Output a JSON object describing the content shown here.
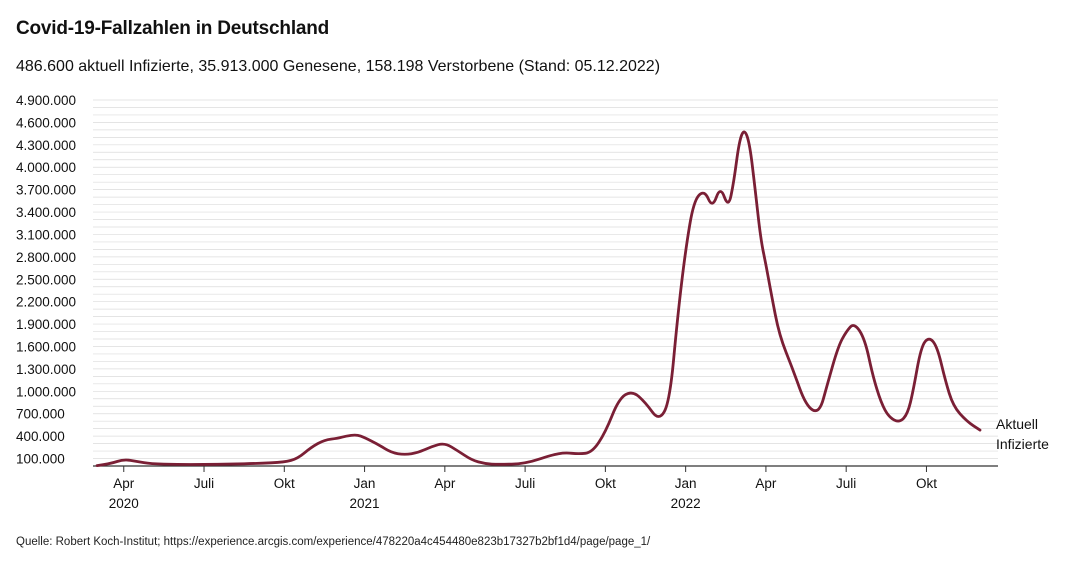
{
  "header": {
    "title": "Covid-19-Fallzahlen in Deutschland",
    "subtitle": "486.600 aktuell Infizierte, 35.913.000 Genesene, 158.198 Verstorbene (Stand: 05.12.2022)"
  },
  "footer": {
    "source": "Quelle: Robert Koch-Institut; https://experience.arcgis.com/experience/478220a4c454480e823b17327b2bf1d4/page/page_1/"
  },
  "colors": {
    "line": "#7a1f35",
    "grid": "#dcdcdc",
    "axis": "#333333"
  },
  "chart_data": {
    "type": "line",
    "title": "Covid-19-Fallzahlen in Deutschland",
    "xlabel": "",
    "ylabel": "",
    "ylim": [
      0,
      4900000
    ],
    "xlim": [
      0,
      33.3
    ],
    "x_unit": "months since 2020-03-01",
    "grid": true,
    "y_ticks": [
      {
        "value": 100000,
        "label": "100.000"
      },
      {
        "value": 400000,
        "label": "400.000"
      },
      {
        "value": 700000,
        "label": "700.000"
      },
      {
        "value": 1000000,
        "label": "1.000.000"
      },
      {
        "value": 1300000,
        "label": "1.300.000"
      },
      {
        "value": 1600000,
        "label": "1.600.000"
      },
      {
        "value": 1900000,
        "label": "1.900.000"
      },
      {
        "value": 2200000,
        "label": "2.200.000"
      },
      {
        "value": 2500000,
        "label": "2.500.000"
      },
      {
        "value": 2800000,
        "label": "2.800.000"
      },
      {
        "value": 3100000,
        "label": "3.100.000"
      },
      {
        "value": 3400000,
        "label": "3.400.000"
      },
      {
        "value": 3700000,
        "label": "3.700.000"
      },
      {
        "value": 4000000,
        "label": "4.000.000"
      },
      {
        "value": 4300000,
        "label": "4.300.000"
      },
      {
        "value": 4600000,
        "label": "4.600.000"
      },
      {
        "value": 4900000,
        "label": "4.900.000"
      }
    ],
    "x_ticks": [
      {
        "value": 1,
        "label": "Apr",
        "sublabel": "2020"
      },
      {
        "value": 4,
        "label": "Juli",
        "sublabel": ""
      },
      {
        "value": 7,
        "label": "Okt",
        "sublabel": ""
      },
      {
        "value": 10,
        "label": "Jan",
        "sublabel": "2021"
      },
      {
        "value": 13,
        "label": "Apr",
        "sublabel": ""
      },
      {
        "value": 16,
        "label": "Juli",
        "sublabel": ""
      },
      {
        "value": 19,
        "label": "Okt",
        "sublabel": ""
      },
      {
        "value": 22,
        "label": "Jan",
        "sublabel": "2022"
      },
      {
        "value": 25,
        "label": "Apr",
        "sublabel": ""
      },
      {
        "value": 28,
        "label": "Juli",
        "sublabel": ""
      },
      {
        "value": 31,
        "label": "Okt",
        "sublabel": ""
      }
    ],
    "series": [
      {
        "name": "Aktuell Infizierte",
        "label_lines": [
          "Aktuell",
          "Infizierte"
        ],
        "x": [
          0,
          0.5,
          1,
          1.5,
          2,
          3,
          4,
          5,
          6,
          7,
          7.5,
          8,
          8.5,
          9,
          9.3,
          9.7,
          10,
          10.5,
          11,
          11.5,
          12,
          12.5,
          13,
          13.5,
          14,
          14.5,
          15,
          16,
          17,
          17.5,
          18,
          18.5,
          19,
          19.5,
          20,
          20.5,
          21,
          21.4,
          21.7,
          22,
          22.3,
          22.7,
          23,
          23.3,
          23.6,
          23.8,
          24,
          24.2,
          24.4,
          24.6,
          24.8,
          25,
          25.2,
          25.5,
          26,
          26.5,
          27,
          27.3,
          27.7,
          28,
          28.3,
          28.7,
          29,
          29.3,
          29.6,
          30,
          30.3,
          30.5,
          30.8,
          31.1,
          31.4,
          31.7,
          32,
          32.5,
          33
        ],
        "values": [
          5000,
          30000,
          90000,
          60000,
          30000,
          20000,
          20000,
          25000,
          35000,
          50000,
          100000,
          250000,
          350000,
          370000,
          400000,
          420000,
          380000,
          290000,
          180000,
          150000,
          180000,
          260000,
          310000,
          200000,
          80000,
          30000,
          20000,
          30000,
          150000,
          180000,
          160000,
          180000,
          450000,
          900000,
          1010000,
          850000,
          600000,
          850000,
          2000000,
          2900000,
          3550000,
          3700000,
          3450000,
          3750000,
          3450000,
          3800000,
          4350000,
          4520000,
          4300000,
          3700000,
          3050000,
          2700000,
          2300000,
          1750000,
          1300000,
          800000,
          700000,
          1100000,
          1600000,
          1800000,
          1920000,
          1700000,
          1200000,
          850000,
          650000,
          580000,
          700000,
          1000000,
          1600000,
          1730000,
          1600000,
          1150000,
          800000,
          600000,
          480000
        ]
      }
    ]
  }
}
